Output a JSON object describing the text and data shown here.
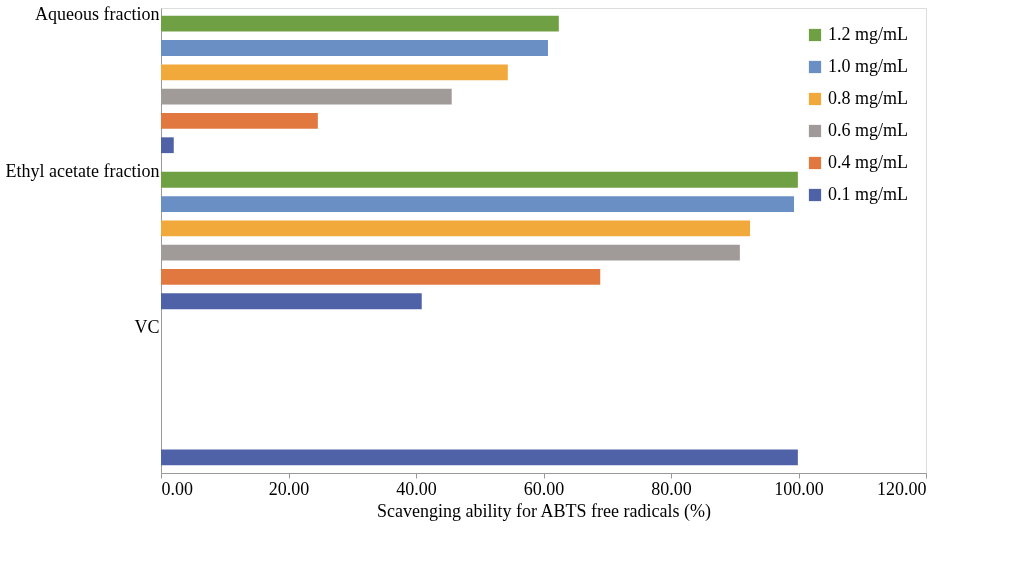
{
  "chart_data": {
    "type": "bar",
    "orientation": "horizontal",
    "xlabel": "Scavenging ability for ABTS free radicals (%)",
    "categories": [
      "Aqueous fraction",
      "Ethyl acetate fraction",
      "VC"
    ],
    "series": [
      {
        "name": "1.2 mg/mL",
        "color": "#70a044",
        "values": [
          62.4,
          99.9,
          null
        ]
      },
      {
        "name": "1.0 mg/mL",
        "color": "#6a8fc4",
        "values": [
          60.7,
          99.3,
          null
        ]
      },
      {
        "name": "0.8 mg/mL",
        "color": "#f2a93b",
        "values": [
          54.4,
          92.4,
          null
        ]
      },
      {
        "name": "0.6 mg/mL",
        "color": "#a09a98",
        "values": [
          45.6,
          90.8,
          null
        ]
      },
      {
        "name": "0.4 mg/mL",
        "color": "#e07840",
        "values": [
          24.6,
          68.9,
          null
        ]
      },
      {
        "name": "0.1 mg/mL",
        "color": "#4f62a8",
        "values": [
          2.0,
          40.9,
          99.9
        ]
      }
    ],
    "xlim": [
      0,
      120
    ],
    "xticks": [
      {
        "value": 0,
        "label": "0.00"
      },
      {
        "value": 20,
        "label": "20.00"
      },
      {
        "value": 40,
        "label": "40.00"
      },
      {
        "value": 60,
        "label": "60.00"
      },
      {
        "value": 80,
        "label": "80.00"
      },
      {
        "value": 100,
        "label": "100.00"
      },
      {
        "value": 120,
        "label": "120.00"
      }
    ],
    "legend": "top right",
    "grid": false
  }
}
